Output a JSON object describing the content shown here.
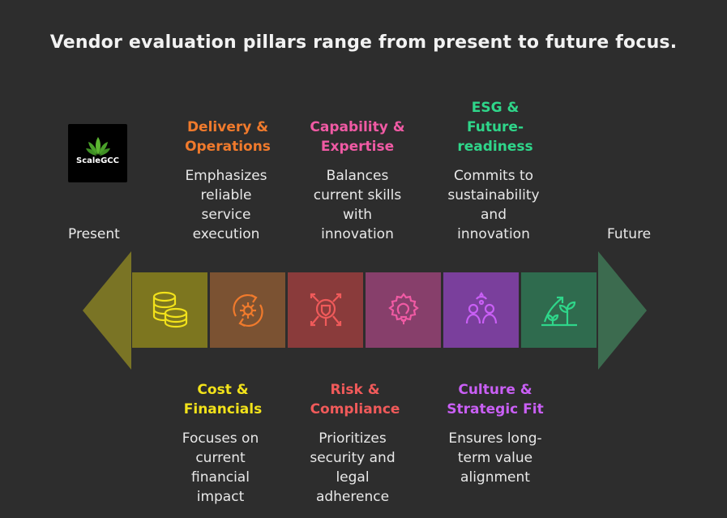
{
  "title": "Vendor evaluation pillars range from present to future focus.",
  "logo": {
    "text": "ScaleGCC",
    "icon": "leaf-cluster-icon"
  },
  "labels": {
    "left": "Present",
    "right": "Future"
  },
  "pillars": [
    {
      "heading_lines": [
        "Cost &",
        "Financials"
      ],
      "desc_lines": [
        "Focuses on",
        "current",
        "financial",
        "impact"
      ],
      "color": "#f2e21a",
      "fill": "#7d761f",
      "icon": "coins-icon",
      "position": "bottom"
    },
    {
      "heading_lines": [
        "Delivery &",
        "Operations"
      ],
      "desc_lines": [
        "Emphasizes",
        "reliable",
        "service",
        "execution"
      ],
      "color": "#f07a2c",
      "fill": "#7b5232",
      "icon": "gear-cycle-icon",
      "position": "top"
    },
    {
      "heading_lines": [
        "Risk &",
        "Compliance"
      ],
      "desc_lines": [
        "Prioritizes",
        "security and",
        "legal",
        "adherence"
      ],
      "color": "#f05a5a",
      "fill": "#8a3b3b",
      "icon": "shield-network-icon",
      "position": "bottom"
    },
    {
      "heading_lines": [
        "Capability &",
        "Expertise"
      ],
      "desc_lines": [
        "Balances",
        "current skills",
        "with",
        "innovation"
      ],
      "color": "#f05aa4",
      "fill": "#873f6b",
      "icon": "lightbulb-gear-icon",
      "position": "top"
    },
    {
      "heading_lines": [
        "Culture &",
        "Strategic Fit"
      ],
      "desc_lines": [
        "Ensures long-",
        "term value",
        "alignment"
      ],
      "color": "#c95ff5",
      "fill": "#7a3f9c",
      "icon": "people-icon",
      "position": "bottom"
    },
    {
      "heading_lines": [
        "ESG &",
        "Future-",
        "readiness"
      ],
      "desc_lines": [
        "Commits to",
        "sustainability",
        "and",
        "innovation"
      ],
      "color": "#2fd68a",
      "fill": "#2f6b4e",
      "icon": "growth-plant-icon",
      "position": "top"
    }
  ],
  "colors": {
    "arrow_left": "#7a7425",
    "arrow_right": "#3c6b4f",
    "background": "#2d2d2d"
  }
}
